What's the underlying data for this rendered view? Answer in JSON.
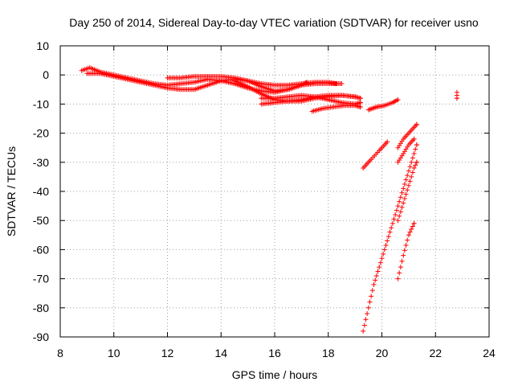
{
  "chart_data": {
    "type": "scatter",
    "title": "Day 250 of 2014, Sidereal Day-to-day VTEC variation (SDTVAR) for receiver usno",
    "xlabel": "GPS time / hours",
    "ylabel": "SDTVAR / TECUs",
    "xlim": [
      8,
      24
    ],
    "ylim": [
      -90,
      10
    ],
    "xticks": [
      8,
      10,
      12,
      14,
      16,
      18,
      20,
      22,
      24
    ],
    "yticks": [
      10,
      0,
      -10,
      -20,
      -30,
      -40,
      -50,
      -60,
      -70,
      -80,
      -90
    ],
    "grid": true,
    "marker": "+",
    "color": "#ff0000",
    "tracks": [
      {
        "x": [
          8.8,
          9.1,
          9.5,
          10.0,
          10.5,
          11.0,
          11.5,
          12.0,
          12.5,
          13.0,
          13.5,
          14.0,
          14.5,
          15.0,
          15.5,
          16.0,
          16.5,
          17.0,
          17.2
        ],
        "y": [
          1.5,
          2.5,
          1.0,
          0.0,
          -1.0,
          -2.0,
          -3.0,
          -3.5,
          -3.0,
          -2.5,
          -1.5,
          -2.0,
          -3.0,
          -4.5,
          -5.5,
          -6.0,
          -5.0,
          -3.5,
          -2.5
        ]
      },
      {
        "x": [
          9.0,
          9.5,
          10.0,
          10.5,
          11.0,
          11.5,
          12.0,
          12.5,
          13.0,
          13.5,
          14.0,
          14.5,
          15.0,
          15.5,
          16.0,
          16.5,
          17.0,
          17.5,
          18.0,
          18.5
        ],
        "y": [
          0.5,
          0.5,
          -0.5,
          -1.5,
          -2.5,
          -3.5,
          -4.5,
          -5.0,
          -5.0,
          -3.5,
          -2.0,
          -1.5,
          -2.0,
          -4.0,
          -5.5,
          -5.0,
          -3.5,
          -3.0,
          -3.0,
          -3.0
        ]
      },
      {
        "x": [
          12.0,
          12.5,
          13.0,
          13.5,
          14.0,
          14.5,
          15.0,
          15.5,
          16.0,
          16.5,
          17.0,
          17.5,
          18.0,
          18.3
        ],
        "y": [
          -1.0,
          -1.0,
          -0.5,
          -0.5,
          -0.5,
          -1.0,
          -2.0,
          -3.0,
          -3.5,
          -3.5,
          -3.0,
          -2.5,
          -2.5,
          -3.0
        ]
      },
      {
        "x": [
          14.5,
          15.0,
          15.5,
          16.0,
          16.5,
          17.0,
          17.5,
          18.0,
          18.5,
          19.0,
          19.2
        ],
        "y": [
          -2.0,
          -4.0,
          -6.5,
          -8.5,
          -9.0,
          -9.0,
          -8.0,
          -7.5,
          -7.0,
          -7.5,
          -8.0
        ]
      },
      {
        "x": [
          15.5,
          16.0,
          16.5,
          17.0,
          17.5,
          18.0,
          18.5,
          19.0
        ],
        "y": [
          -10.0,
          -9.5,
          -9.0,
          -8.5,
          -7.5,
          -7.0,
          -7.0,
          -7.5
        ]
      },
      {
        "x": [
          15.5,
          16.0,
          16.5,
          17.0,
          17.5,
          18.0,
          18.5,
          19.0,
          19.2
        ],
        "y": [
          -8.0,
          -8.0,
          -7.5,
          -7.0,
          -7.5,
          -8.5,
          -9.5,
          -10.0,
          -9.5
        ]
      },
      {
        "x": [
          17.4,
          17.8,
          18.2,
          18.6,
          19.0,
          19.2
        ],
        "y": [
          -12.5,
          -11.5,
          -11.0,
          -10.5,
          -10.5,
          -11.0
        ]
      },
      {
        "x": [
          19.5,
          19.8,
          20.1,
          20.4,
          20.6
        ],
        "y": [
          -12.0,
          -11.0,
          -10.5,
          -9.5,
          -8.5
        ]
      },
      {
        "x": [
          19.3,
          19.6,
          19.9,
          20.2
        ],
        "y": [
          -32.0,
          -29.0,
          -26.0,
          -23.0
        ]
      },
      {
        "x": [
          19.3,
          19.5,
          19.7,
          19.9,
          20.1,
          20.3,
          20.5,
          20.7,
          20.9,
          21.1,
          21.3
        ],
        "y": [
          -88.0,
          -80.0,
          -72.0,
          -66.0,
          -60.0,
          -54.0,
          -48.0,
          -42.0,
          -36.0,
          -30.0,
          -24.0
        ]
      },
      {
        "x": [
          20.6,
          20.8,
          21.0,
          21.2
        ],
        "y": [
          -70.0,
          -62.0,
          -55.0,
          -51.0
        ]
      },
      {
        "x": [
          20.6,
          20.8,
          21.0,
          21.2,
          21.3
        ],
        "y": [
          -50.0,
          -44.0,
          -38.0,
          -32.0,
          -30.0
        ]
      },
      {
        "x": [
          20.6,
          20.8,
          21.0,
          21.2
        ],
        "y": [
          -30.0,
          -27.0,
          -24.0,
          -22.0
        ]
      },
      {
        "x": [
          20.6,
          20.8,
          21.0,
          21.3
        ],
        "y": [
          -25.0,
          -22.0,
          -20.0,
          -17.0
        ]
      },
      {
        "x": [
          22.8,
          22.8,
          22.8
        ],
        "y": [
          -6.0,
          -7.0,
          -8.0
        ]
      }
    ]
  }
}
